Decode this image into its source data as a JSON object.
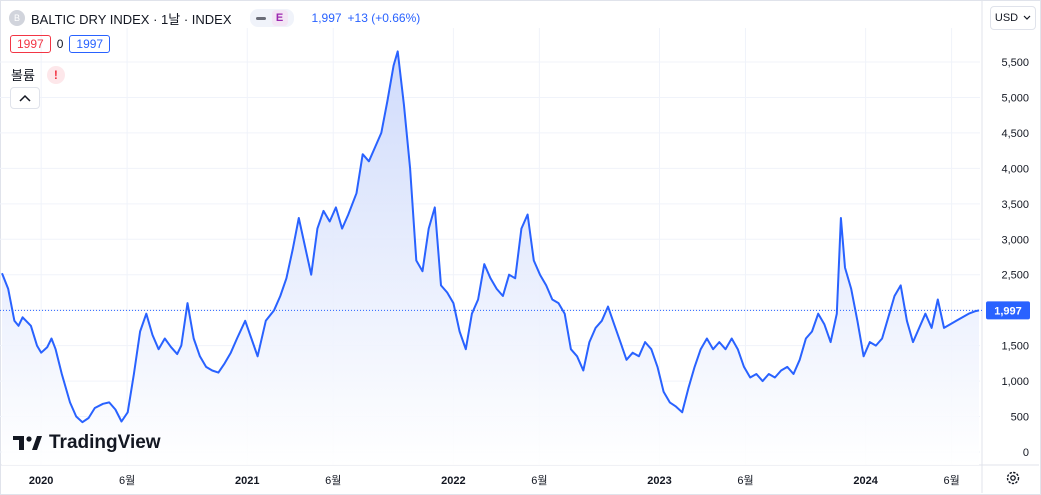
{
  "header": {
    "symbol_logo": "B",
    "title": "BALTIC DRY INDEX · 1날 · INDEX",
    "pill_badge": "E",
    "last_price": "1,997",
    "change": "+13 (+0.66%)"
  },
  "ohlc": {
    "sell": "1997",
    "spread": "0",
    "buy": "1997"
  },
  "volume": {
    "label": "볼륨",
    "warning": "!"
  },
  "currency": {
    "label": "USD"
  },
  "branding": {
    "logo_text": "TradingView"
  },
  "colors": {
    "line": "#2962ff",
    "fill_top": "#cdd9fb",
    "grid": "#f0f3fa",
    "axis_text": "#131722"
  },
  "chart_data": {
    "type": "area",
    "title": "BALTIC DRY INDEX · 1날 · INDEX",
    "xlabel": "",
    "ylabel": "",
    "ylim": [
      0,
      5800
    ],
    "y_ticks": [
      0,
      500,
      1000,
      1500,
      2000,
      2500,
      3000,
      3500,
      4000,
      4500,
      5000,
      5500
    ],
    "y_tick_labels": [
      "0",
      "500",
      "1,000",
      "1,500",
      "2,000",
      "2,500",
      "3,000",
      "3,500",
      "4,000",
      "4,500",
      "5,000",
      "5,500"
    ],
    "x_range": [
      2019.81,
      2024.55
    ],
    "x_ticks": [
      {
        "x": 2020.0,
        "label": "2020",
        "year": true
      },
      {
        "x": 2020.417,
        "label": "6월",
        "year": false
      },
      {
        "x": 2021.0,
        "label": "2021",
        "year": true
      },
      {
        "x": 2021.417,
        "label": "6월",
        "year": false
      },
      {
        "x": 2022.0,
        "label": "2022",
        "year": true
      },
      {
        "x": 2022.417,
        "label": "6월",
        "year": false
      },
      {
        "x": 2023.0,
        "label": "2023",
        "year": true
      },
      {
        "x": 2023.417,
        "label": "6월",
        "year": false
      },
      {
        "x": 2024.0,
        "label": "2024",
        "year": true
      },
      {
        "x": 2024.417,
        "label": "6월",
        "year": false
      }
    ],
    "last_value": 1997,
    "last_value_label": "1,997",
    "series": [
      {
        "name": "BALTIC DRY INDEX",
        "points": [
          [
            2019.81,
            2520
          ],
          [
            2019.84,
            2300
          ],
          [
            2019.87,
            1850
          ],
          [
            2019.89,
            1780
          ],
          [
            2019.91,
            1900
          ],
          [
            2019.95,
            1780
          ],
          [
            2019.98,
            1500
          ],
          [
            2020.0,
            1400
          ],
          [
            2020.03,
            1480
          ],
          [
            2020.05,
            1600
          ],
          [
            2020.07,
            1450
          ],
          [
            2020.1,
            1100
          ],
          [
            2020.14,
            700
          ],
          [
            2020.17,
            500
          ],
          [
            2020.2,
            420
          ],
          [
            2020.23,
            480
          ],
          [
            2020.26,
            620
          ],
          [
            2020.3,
            680
          ],
          [
            2020.33,
            700
          ],
          [
            2020.36,
            600
          ],
          [
            2020.39,
            430
          ],
          [
            2020.42,
            560
          ],
          [
            2020.45,
            1100
          ],
          [
            2020.48,
            1700
          ],
          [
            2020.51,
            1950
          ],
          [
            2020.54,
            1650
          ],
          [
            2020.57,
            1450
          ],
          [
            2020.6,
            1600
          ],
          [
            2020.63,
            1480
          ],
          [
            2020.66,
            1380
          ],
          [
            2020.68,
            1500
          ],
          [
            2020.71,
            2100
          ],
          [
            2020.74,
            1600
          ],
          [
            2020.77,
            1350
          ],
          [
            2020.8,
            1200
          ],
          [
            2020.83,
            1150
          ],
          [
            2020.86,
            1120
          ],
          [
            2020.89,
            1250
          ],
          [
            2020.92,
            1400
          ],
          [
            2020.95,
            1600
          ],
          [
            2020.99,
            1850
          ],
          [
            2021.02,
            1600
          ],
          [
            2021.05,
            1350
          ],
          [
            2021.09,
            1850
          ],
          [
            2021.13,
            2000
          ],
          [
            2021.16,
            2200
          ],
          [
            2021.19,
            2450
          ],
          [
            2021.22,
            2850
          ],
          [
            2021.25,
            3300
          ],
          [
            2021.28,
            2900
          ],
          [
            2021.31,
            2500
          ],
          [
            2021.34,
            3150
          ],
          [
            2021.37,
            3400
          ],
          [
            2021.4,
            3250
          ],
          [
            2021.43,
            3450
          ],
          [
            2021.46,
            3150
          ],
          [
            2021.49,
            3350
          ],
          [
            2021.53,
            3650
          ],
          [
            2021.56,
            4200
          ],
          [
            2021.59,
            4100
          ],
          [
            2021.62,
            4300
          ],
          [
            2021.65,
            4500
          ],
          [
            2021.68,
            4950
          ],
          [
            2021.71,
            5450
          ],
          [
            2021.73,
            5650
          ],
          [
            2021.76,
            4900
          ],
          [
            2021.79,
            4000
          ],
          [
            2021.82,
            2700
          ],
          [
            2021.85,
            2550
          ],
          [
            2021.88,
            3150
          ],
          [
            2021.91,
            3450
          ],
          [
            2021.94,
            2350
          ],
          [
            2021.97,
            2250
          ],
          [
            2022.0,
            2100
          ],
          [
            2022.03,
            1700
          ],
          [
            2022.06,
            1450
          ],
          [
            2022.09,
            1950
          ],
          [
            2022.12,
            2150
          ],
          [
            2022.15,
            2650
          ],
          [
            2022.18,
            2450
          ],
          [
            2022.21,
            2300
          ],
          [
            2022.24,
            2200
          ],
          [
            2022.27,
            2500
          ],
          [
            2022.3,
            2450
          ],
          [
            2022.33,
            3150
          ],
          [
            2022.36,
            3350
          ],
          [
            2022.39,
            2700
          ],
          [
            2022.42,
            2500
          ],
          [
            2022.45,
            2350
          ],
          [
            2022.48,
            2150
          ],
          [
            2022.51,
            2100
          ],
          [
            2022.54,
            1950
          ],
          [
            2022.57,
            1450
          ],
          [
            2022.6,
            1350
          ],
          [
            2022.63,
            1150
          ],
          [
            2022.66,
            1550
          ],
          [
            2022.69,
            1750
          ],
          [
            2022.72,
            1850
          ],
          [
            2022.75,
            2050
          ],
          [
            2022.78,
            1800
          ],
          [
            2022.81,
            1550
          ],
          [
            2022.84,
            1300
          ],
          [
            2022.87,
            1400
          ],
          [
            2022.9,
            1350
          ],
          [
            2022.93,
            1550
          ],
          [
            2022.96,
            1450
          ],
          [
            2022.99,
            1200
          ],
          [
            2023.02,
            850
          ],
          [
            2023.05,
            700
          ],
          [
            2023.08,
            640
          ],
          [
            2023.11,
            560
          ],
          [
            2023.14,
            900
          ],
          [
            2023.17,
            1200
          ],
          [
            2023.2,
            1450
          ],
          [
            2023.23,
            1600
          ],
          [
            2023.26,
            1450
          ],
          [
            2023.29,
            1550
          ],
          [
            2023.32,
            1450
          ],
          [
            2023.35,
            1600
          ],
          [
            2023.38,
            1450
          ],
          [
            2023.41,
            1200
          ],
          [
            2023.44,
            1050
          ],
          [
            2023.47,
            1100
          ],
          [
            2023.5,
            1000
          ],
          [
            2023.53,
            1100
          ],
          [
            2023.56,
            1050
          ],
          [
            2023.59,
            1150
          ],
          [
            2023.62,
            1200
          ],
          [
            2023.65,
            1100
          ],
          [
            2023.68,
            1300
          ],
          [
            2023.71,
            1600
          ],
          [
            2023.74,
            1700
          ],
          [
            2023.77,
            1950
          ],
          [
            2023.8,
            1800
          ],
          [
            2023.83,
            1550
          ],
          [
            2023.86,
            1950
          ],
          [
            2023.88,
            3300
          ],
          [
            2023.9,
            2600
          ],
          [
            2023.93,
            2300
          ],
          [
            2023.96,
            1850
          ],
          [
            2023.99,
            1350
          ],
          [
            2024.02,
            1550
          ],
          [
            2024.05,
            1500
          ],
          [
            2024.08,
            1600
          ],
          [
            2024.11,
            1900
          ],
          [
            2024.14,
            2200
          ],
          [
            2024.17,
            2350
          ],
          [
            2024.2,
            1850
          ],
          [
            2024.23,
            1550
          ],
          [
            2024.26,
            1750
          ],
          [
            2024.29,
            1950
          ],
          [
            2024.32,
            1750
          ],
          [
            2024.35,
            2150
          ],
          [
            2024.38,
            1750
          ],
          [
            2024.41,
            1800
          ],
          [
            2024.44,
            1850
          ],
          [
            2024.47,
            1900
          ],
          [
            2024.5,
            1950
          ],
          [
            2024.53,
            1984
          ],
          [
            2024.55,
            1997
          ]
        ]
      }
    ]
  }
}
